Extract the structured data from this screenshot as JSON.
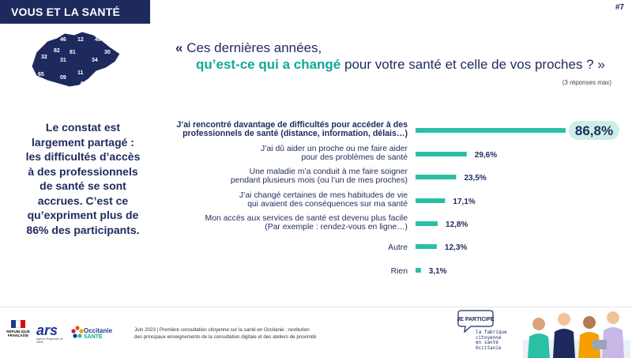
{
  "header": {
    "banner": "VOUS ET LA SANTÉ",
    "page_number": "#7"
  },
  "map": {
    "departments": [
      "46",
      "12",
      "48",
      "82",
      "81",
      "30",
      "32",
      "34",
      "31",
      "65",
      "09",
      "11",
      "66"
    ]
  },
  "question": {
    "open_quote": "«",
    "line1": "Ces dernières années,",
    "highlight": "qu’est-ce qui a changé",
    "rest": " pour votre santé et celle de vos proches ? »",
    "note": "(3 réponses max)"
  },
  "left_note": "Le constat est largement partagé : les difficultés d’accès à des professionnels de santé se sont accrues. C’est ce qu’expriment plus de 86% des participants.",
  "chart_data": {
    "type": "bar",
    "orientation": "horizontal",
    "categories": [
      [
        "J’ai rencontré davantage de difficultés pour accéder à des",
        "professionnels de santé (distance, information, délais…)"
      ],
      [
        "J’ai dû aider un proche ou me faire aider",
        "pour des problèmes de santé"
      ],
      [
        "Une maladie m’a conduit à me faire soigner",
        "pendant plusieurs mois (ou l’un de mes proches)"
      ],
      [
        "J’ai changé certaines de mes habitudes de vie",
        "qui avaient des conséquences sur ma santé"
      ],
      [
        "Mon accès aux services de santé est devenu plus facile",
        "(Par exemple : rendez-vous en ligne…)"
      ],
      [
        "Autre"
      ],
      [
        "Rien"
      ]
    ],
    "values": [
      86.8,
      29.6,
      23.5,
      17.1,
      12.8,
      12.3,
      3.1
    ],
    "value_labels": [
      "86,8%",
      "29,6%",
      "23,5%",
      "17,1%",
      "12,8%",
      "12,3%",
      "3,1%"
    ],
    "highlight_index": 0,
    "bar_color": "#2bbfa4",
    "highlight_bg": "#cdeee8",
    "xlim": [
      0,
      100
    ]
  },
  "footer": {
    "line1": "Juin 2023 | Première consultation citoyenne sur la santé en Occitanie : restitution",
    "line2": "des principaux enseignements de la consultation digitale et des ateliers de proximité",
    "rf_lines": [
      "RÉPUBLIQUE",
      "FRANÇAISE"
    ],
    "ars": "ars",
    "ars_sub": "Agence Régionale de Santé",
    "occ1": "Occitanie",
    "occ2": "SANTÉ",
    "participe": "JE PARTICIPE",
    "fabrique": [
      "la fabrique",
      "citoyenne",
      "en santé",
      "Occitanie"
    ]
  },
  "colors": {
    "navy": "#1e2a5e",
    "teal": "#12a89a",
    "bar": "#2bbfa4"
  }
}
